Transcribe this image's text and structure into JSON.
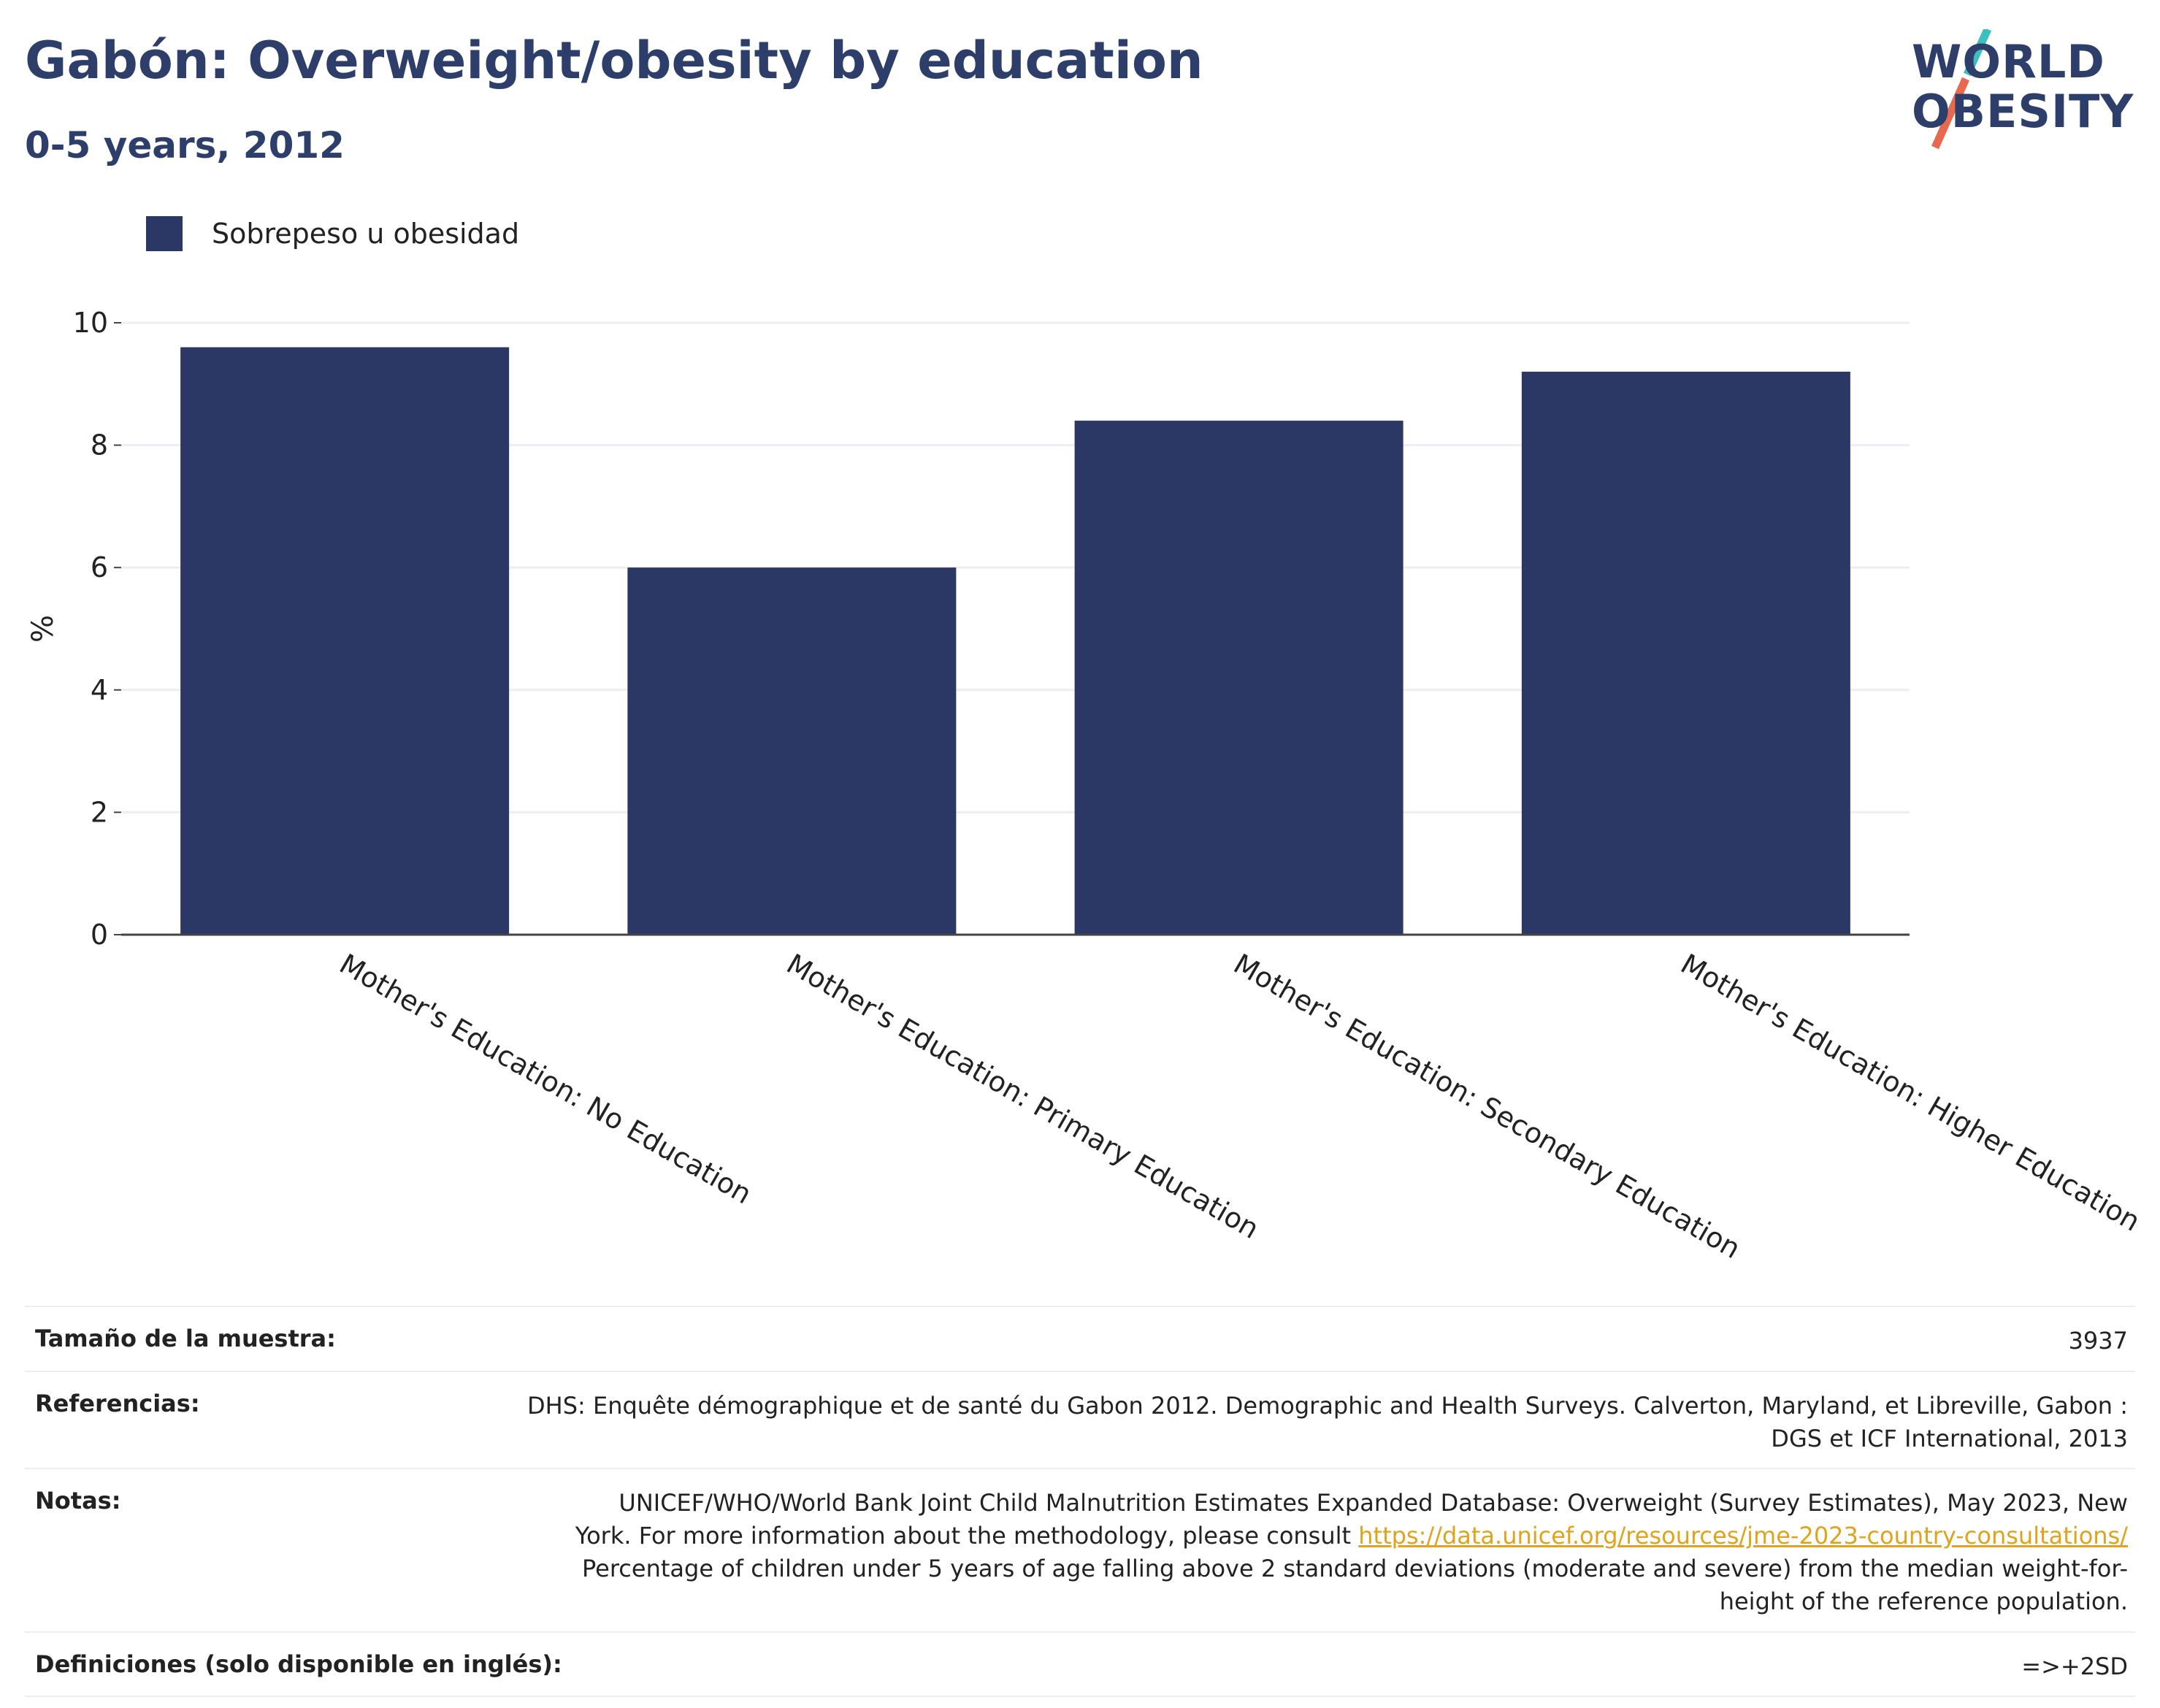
{
  "header": {
    "title": "Gabón: Overweight/obesity by education",
    "subtitle": "0-5 years, 2012"
  },
  "logo": {
    "line1": "WORLD",
    "line2": "OBESITY",
    "colors": {
      "text": "#2c3e69",
      "slash_top": "#3bbfbf",
      "slash_bottom": "#e86a4e"
    }
  },
  "legend": {
    "label": "Sobrepeso u obesidad",
    "color": "#2b3764"
  },
  "chart_data": {
    "type": "bar",
    "categories": [
      "Mother's Education: No Education",
      "Mother's Education: Primary Education",
      "Mother's Education: Secondary Education",
      "Mother's Education: Higher Education"
    ],
    "series": [
      {
        "name": "Sobrepeso u obesidad",
        "values": [
          9.6,
          6.0,
          8.4,
          9.2
        ]
      }
    ],
    "ylabel": "%",
    "xlabel": "",
    "ylim": [
      0,
      10
    ],
    "yticks": [
      0,
      2,
      4,
      6,
      8,
      10
    ],
    "grid": true,
    "legend_position": "top-left",
    "bar_color": "#2b3764"
  },
  "info": {
    "sample": {
      "label": "Tamaño de la muestra:",
      "value": "3937"
    },
    "references": {
      "label": "Referencias:",
      "line1": "DHS: Enquête démographique et de santé du Gabon 2012. Demographic and Health Surveys. Calverton, Maryland, et Libreville, Gabon :",
      "line2": "DGS et ICF International, 2013"
    },
    "notes": {
      "label": "Notas:",
      "line1": "UNICEF/WHO/World Bank Joint Child Malnutrition Estimates Expanded Database: Overweight (Survey Estimates), May 2023, New",
      "line2_prefix": "York. For more information about the methodology, please consult ",
      "link": "https://data.unicef.org/resources/jme-2023-country-consultations/",
      "line3": "Percentage of children under 5 years of age falling above 2 standard deviations (moderate and severe) from the median weight-for-",
      "line4": "height of the reference population."
    },
    "definitions": {
      "label": "Definiciones (solo disponible en inglés):",
      "value": "=>+2SD"
    }
  }
}
